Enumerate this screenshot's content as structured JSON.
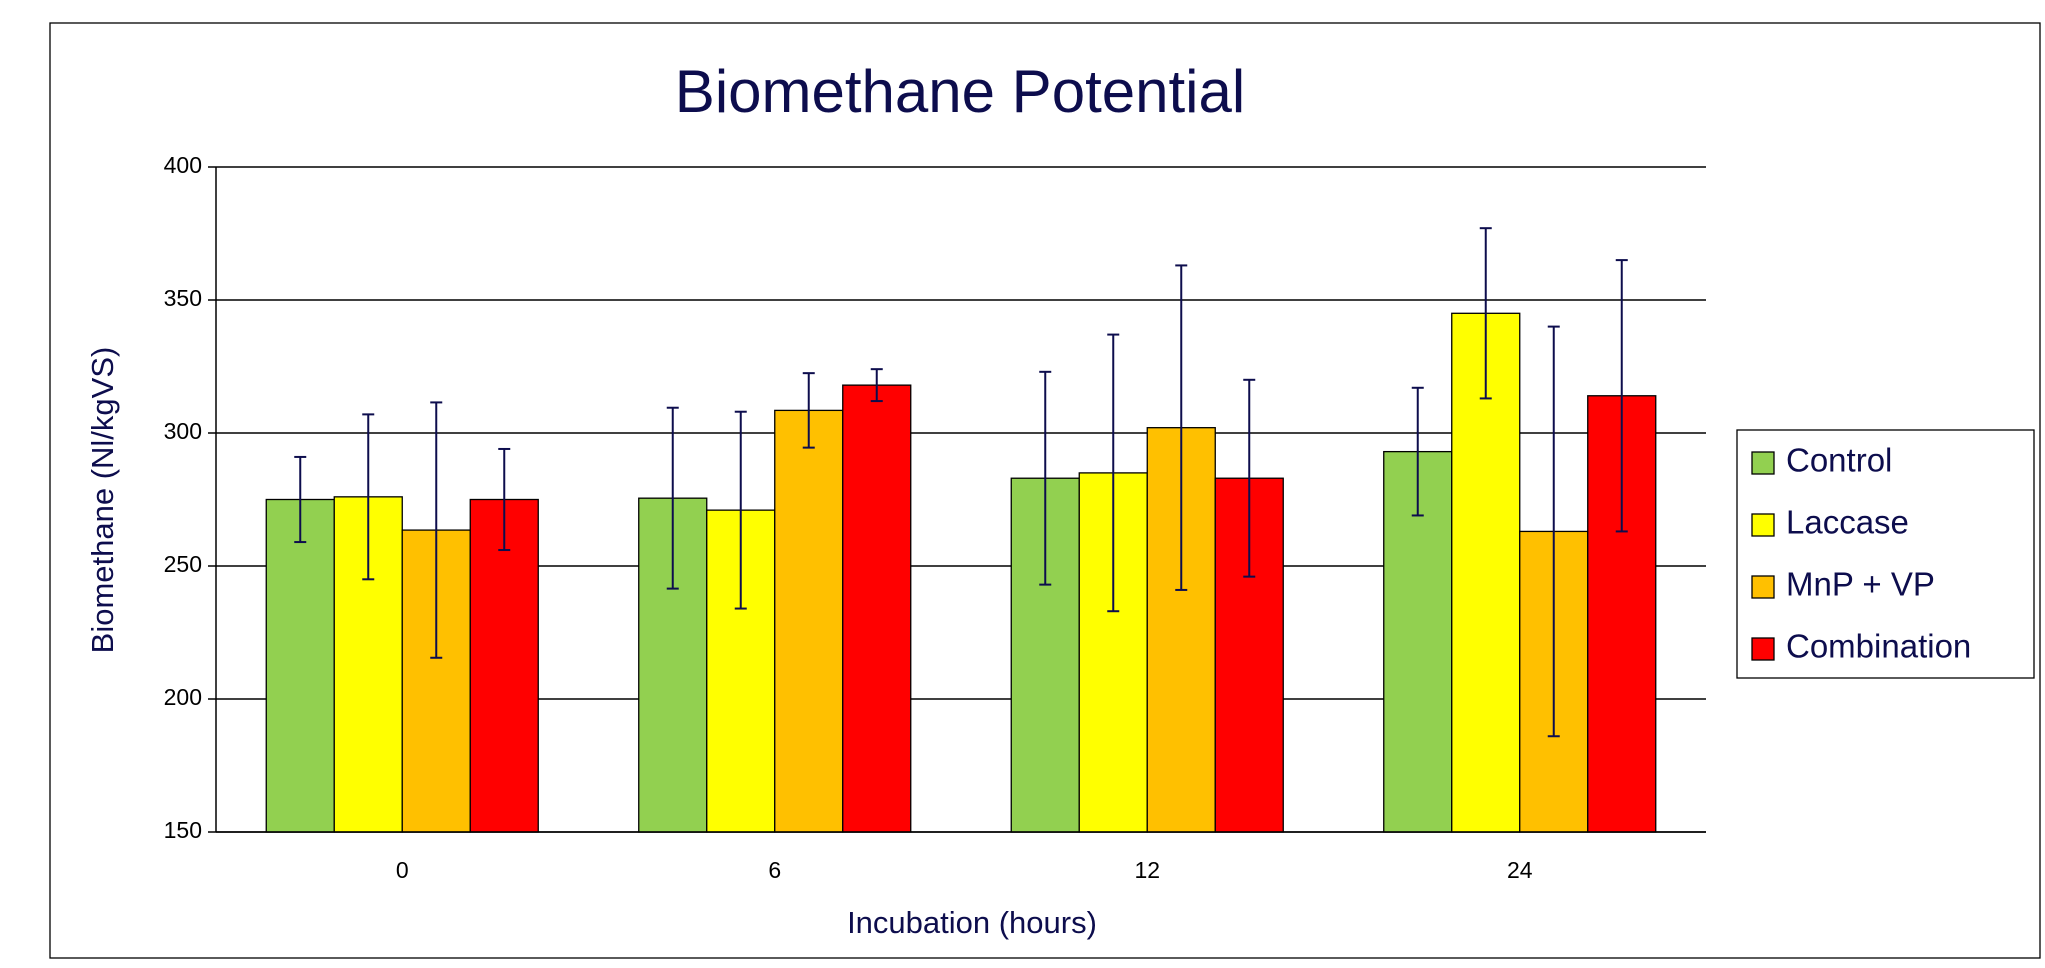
{
  "chart_data": {
    "type": "bar",
    "title": "Biomethane Potential",
    "x_label": "Incubation (hours)",
    "y_label": "Biomethane (Nl/kgVS)",
    "categories": [
      "0",
      "6",
      "12",
      "24"
    ],
    "series": [
      {
        "name": "Control",
        "color": "#92d050",
        "values": [
          275,
          275.5,
          283,
          293
        ],
        "errors": [
          16,
          34,
          40,
          24
        ]
      },
      {
        "name": "Laccase",
        "color": "#ffff00",
        "values": [
          276,
          271,
          285,
          345
        ],
        "errors": [
          31,
          37,
          52,
          32
        ]
      },
      {
        "name": "MnP + VP",
        "color": "#ffc000",
        "values": [
          263.5,
          308.5,
          302,
          263
        ],
        "errors": [
          48,
          14,
          61,
          77
        ]
      },
      {
        "name": "Combination",
        "color": "#ff0000",
        "values": [
          275,
          318,
          283,
          314
        ],
        "errors": [
          19,
          6,
          37,
          51
        ]
      }
    ],
    "ylim": [
      150,
      400
    ],
    "yticks": [
      150,
      200,
      250,
      300,
      350,
      400
    ],
    "grid": true,
    "legend": "right"
  }
}
